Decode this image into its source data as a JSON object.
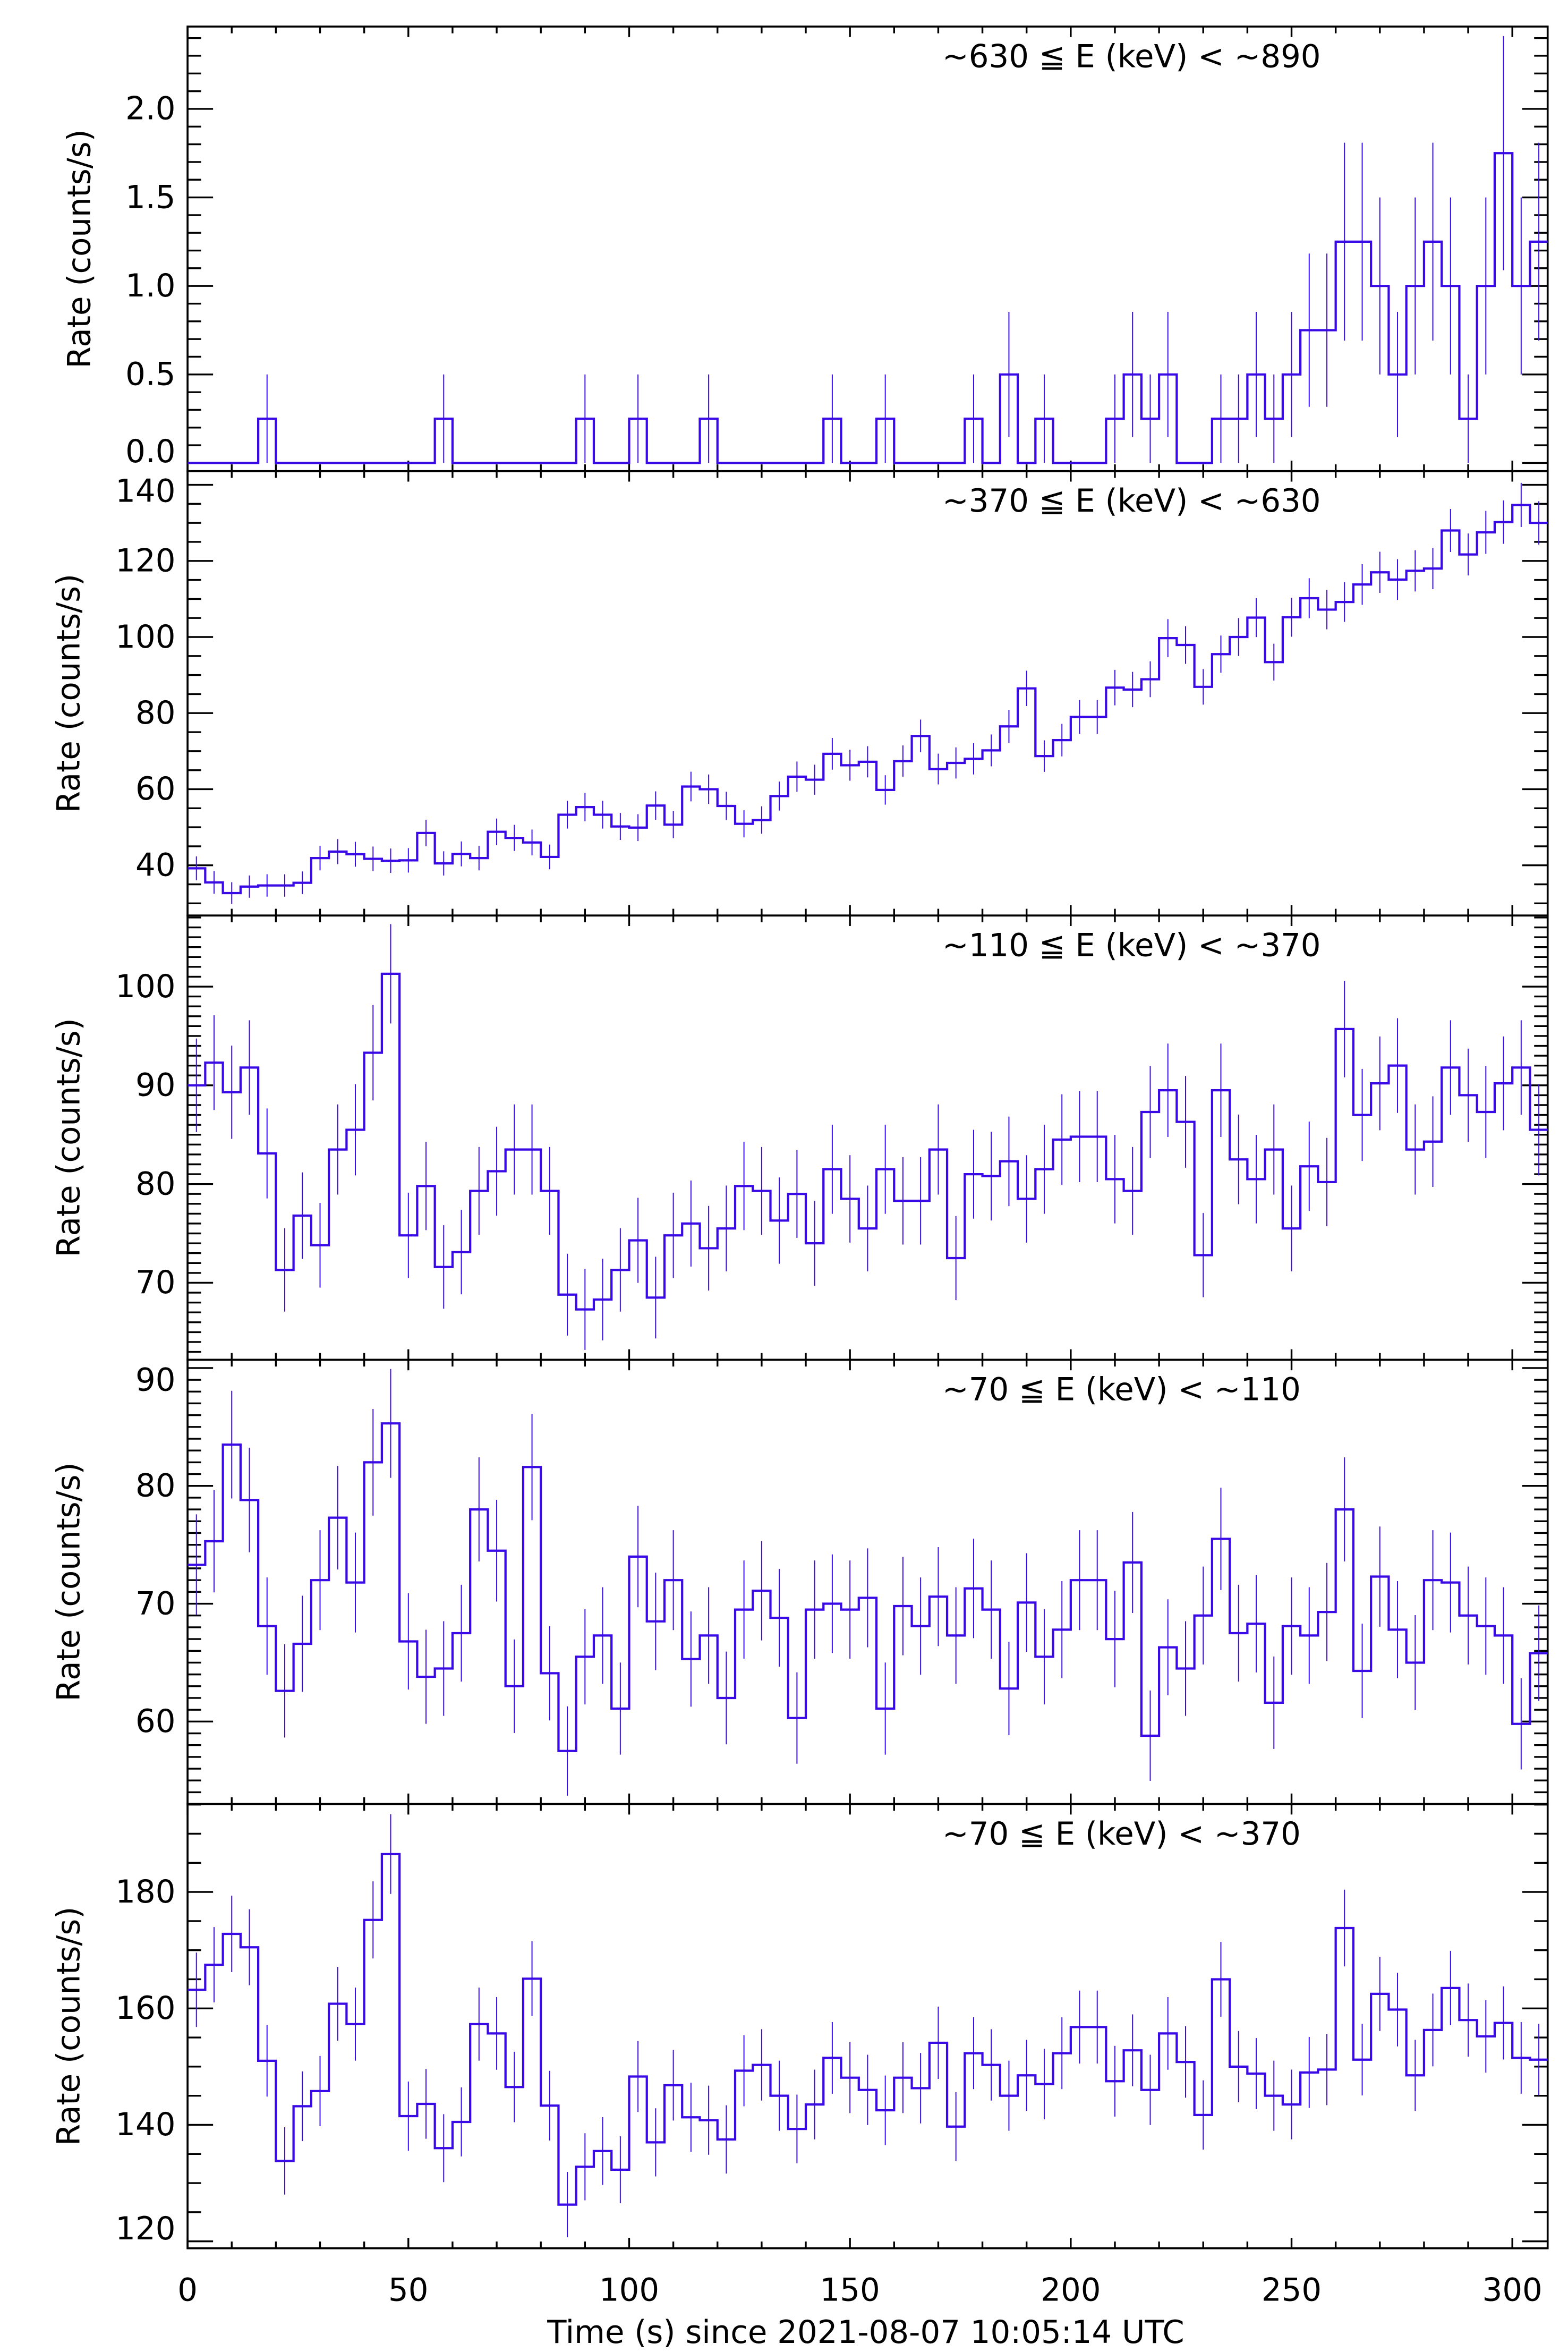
{
  "figure": {
    "xlabel": "Time (s) since 2021-08-07 10:05:14 UTC",
    "line_color": "#3a0ae6",
    "axis_color": "#000000"
  },
  "chart_data": [
    {
      "type": "line",
      "style": "step-histogram-with-error-bars",
      "annotation": "~630 ≦ E (keV) < ~890",
      "xlabel": "Time (s) since 2021-08-07 10:05:14 UTC",
      "ylabel": "Rate (counts/s)",
      "xlim": [
        0,
        308
      ],
      "ylim": [
        -0.046,
        2.465
      ],
      "bin_width": 4,
      "x_start": 0,
      "yticks": [
        0.0,
        0.5,
        1.0,
        1.5,
        2.0
      ],
      "ytick_labels": [
        "0.0",
        "0.5",
        "1.0",
        "1.5",
        "2.0"
      ],
      "yminor": 0.1,
      "values": [
        0,
        0,
        0,
        0,
        0.25,
        0,
        0,
        0,
        0,
        0,
        0,
        0,
        0,
        0,
        0.25,
        0,
        0,
        0,
        0,
        0,
        0,
        0,
        0.25,
        0,
        0,
        0.25,
        0,
        0,
        0,
        0.25,
        0,
        0,
        0,
        0,
        0,
        0,
        0.25,
        0,
        0,
        0.25,
        0,
        0,
        0,
        0,
        0.25,
        0,
        0.5,
        0,
        0.25,
        0,
        0,
        0,
        0.25,
        0.5,
        0.25,
        0.5,
        0,
        0,
        0.25,
        0.25,
        0.5,
        0.25,
        0.5,
        0.75,
        0.75,
        1.25,
        1.25,
        1.0,
        0.5,
        1.0,
        1.25,
        1.0,
        0.25,
        1.0,
        1.75,
        1.0,
        1.25
      ]
    },
    {
      "type": "line",
      "style": "step-histogram-with-error-bars",
      "annotation": "~370 ≦ E (keV) < ~630",
      "xlabel": "Time (s) since 2021-08-07 10:05:14 UTC",
      "ylabel": "Rate (counts/s)",
      "xlim": [
        0,
        308
      ],
      "ylim": [
        26.8,
        143.6
      ],
      "bin_width": 4,
      "x_start": 0,
      "yticks": [
        40,
        60,
        80,
        100,
        120,
        140
      ],
      "ytick_labels": [
        "40",
        "60",
        "80",
        "100",
        "120",
        "140"
      ],
      "yminor": 5,
      "values": [
        39.2,
        35.5,
        32.7,
        34.4,
        34.7,
        34.7,
        35.4,
        41.9,
        43.6,
        42.9,
        41.7,
        41.2,
        41.3,
        48.5,
        40.5,
        43.0,
        41.9,
        48.8,
        47.2,
        46.0,
        42.2,
        53.3,
        55.3,
        53.3,
        50.2,
        49.9,
        55.7,
        50.7,
        60.7,
        60.0,
        55.6,
        50.9,
        51.9,
        58.2,
        63.3,
        62.5,
        69.3,
        66.3,
        67.2,
        59.8,
        67.4,
        74.0,
        65.3,
        66.9,
        68.0,
        70.2,
        76.5,
        86.5,
        68.7,
        72.9,
        79.0,
        79.0,
        86.7,
        86.2,
        88.9,
        99.7,
        97.9,
        86.9,
        95.5,
        100.0,
        105.1,
        93.4,
        105.2,
        110.2,
        107.2,
        109.2,
        113.8,
        117.0,
        115.1,
        117.4,
        118.0,
        128.0,
        121.7,
        127.5,
        130.2,
        134.7,
        130.0
      ]
    },
    {
      "type": "line",
      "style": "step-histogram-with-error-bars",
      "annotation": "~110 ≦ E (keV) < ~370",
      "xlabel": "Time (s) since 2021-08-07 10:05:14 UTC",
      "ylabel": "Rate (counts/s)",
      "xlim": [
        0,
        308
      ],
      "ylim": [
        62.2,
        107.2
      ],
      "bin_width": 4,
      "x_start": 0,
      "yticks": [
        70,
        80,
        90,
        100
      ],
      "ytick_labels": [
        "70",
        "80",
        "90",
        "100"
      ],
      "yminor": 1,
      "values": [
        90.0,
        92.3,
        89.3,
        91.8,
        83.1,
        71.3,
        76.8,
        73.8,
        83.5,
        85.5,
        93.3,
        101.3,
        74.8,
        79.8,
        71.6,
        73.1,
        79.3,
        81.3,
        83.5,
        83.5,
        79.3,
        68.8,
        67.3,
        68.3,
        71.3,
        74.3,
        68.5,
        74.8,
        76.0,
        73.5,
        75.5,
        79.8,
        79.3,
        76.3,
        79.0,
        74.0,
        81.5,
        78.5,
        75.5,
        81.5,
        78.3,
        78.3,
        83.5,
        72.5,
        81.0,
        80.8,
        82.3,
        78.5,
        81.5,
        84.5,
        84.8,
        84.8,
        80.5,
        79.3,
        87.3,
        89.5,
        86.3,
        72.8,
        89.5,
        82.5,
        80.5,
        83.5,
        75.5,
        81.8,
        80.2,
        95.7,
        87.0,
        90.2,
        92.0,
        83.5,
        84.3,
        91.8,
        89.0,
        87.3,
        90.2,
        91.8,
        85.5
      ]
    },
    {
      "type": "line",
      "style": "step-histogram-with-error-bars",
      "annotation": "~70 ≦ E (keV) < ~110",
      "xlabel": "Time (s) since 2021-08-07 10:05:14 UTC",
      "ylabel": "Rate (counts/s)",
      "xlim": [
        0,
        308
      ],
      "ylim": [
        53.0,
        90.7
      ],
      "bin_width": 4,
      "x_start": 0,
      "yticks": [
        60,
        70,
        80,
        90
      ],
      "ytick_labels": [
        "60",
        "70",
        "80",
        "90"
      ],
      "yminor": 1,
      "values": [
        73.3,
        75.3,
        83.5,
        78.8,
        68.1,
        62.6,
        66.6,
        72.0,
        77.3,
        71.8,
        82.0,
        85.3,
        66.8,
        63.8,
        64.5,
        67.5,
        78.0,
        74.5,
        63.0,
        81.6,
        64.1,
        57.5,
        65.5,
        67.3,
        61.1,
        74.0,
        68.5,
        72.0,
        65.3,
        67.3,
        62.0,
        69.5,
        71.1,
        68.8,
        60.3,
        69.5,
        70.0,
        69.5,
        70.5,
        61.1,
        69.8,
        68.1,
        70.6,
        67.3,
        71.3,
        69.5,
        62.8,
        70.1,
        65.5,
        67.8,
        72.0,
        72.0,
        67.0,
        73.5,
        58.8,
        66.3,
        64.5,
        69.0,
        75.5,
        67.5,
        68.3,
        61.6,
        68.1,
        67.3,
        69.3,
        78.0,
        64.3,
        72.3,
        67.8,
        65.0,
        72.0,
        71.8,
        69.0,
        68.1,
        67.3,
        59.8,
        65.8
      ]
    },
    {
      "type": "line",
      "style": "step-histogram-with-error-bars",
      "annotation": "~70 ≦ E (keV) < ~370",
      "xlabel": "Time (s) since 2021-08-07 10:05:14 UTC",
      "ylabel": "Rate (counts/s)",
      "xlim": [
        0,
        308
      ],
      "ylim": [
        118.8,
        195.1
      ],
      "bin_width": 4,
      "x_start": 0,
      "yticks": [
        120,
        140,
        160,
        180
      ],
      "ytick_labels": [
        "120",
        "140",
        "160",
        "180"
      ],
      "yminor": 5,
      "xticks": [
        0,
        50,
        100,
        150,
        200,
        250,
        300
      ],
      "xtick_labels": [
        "0",
        "50",
        "100",
        "150",
        "200",
        "250",
        "300"
      ],
      "values": [
        163.2,
        167.5,
        172.8,
        170.5,
        151.0,
        133.8,
        143.2,
        145.8,
        160.8,
        157.3,
        175.2,
        186.5,
        141.5,
        143.6,
        136.0,
        140.5,
        157.3,
        155.7,
        146.5,
        165.1,
        143.3,
        126.3,
        132.8,
        135.5,
        132.3,
        148.3,
        137.0,
        146.8,
        141.3,
        140.8,
        137.5,
        149.3,
        150.3,
        145.0,
        139.3,
        143.5,
        151.5,
        148.1,
        146.0,
        142.5,
        148.1,
        146.3,
        154.1,
        139.7,
        152.3,
        150.3,
        145.0,
        148.5,
        147.0,
        152.3,
        156.8,
        156.8,
        147.5,
        152.8,
        146.0,
        155.7,
        150.8,
        141.7,
        165.0,
        150.0,
        148.8,
        145.0,
        143.5,
        149.0,
        149.5,
        173.8,
        151.2,
        162.5,
        159.8,
        148.5,
        156.3,
        163.5,
        158.0,
        155.2,
        157.5,
        151.5,
        151.2
      ]
    }
  ]
}
